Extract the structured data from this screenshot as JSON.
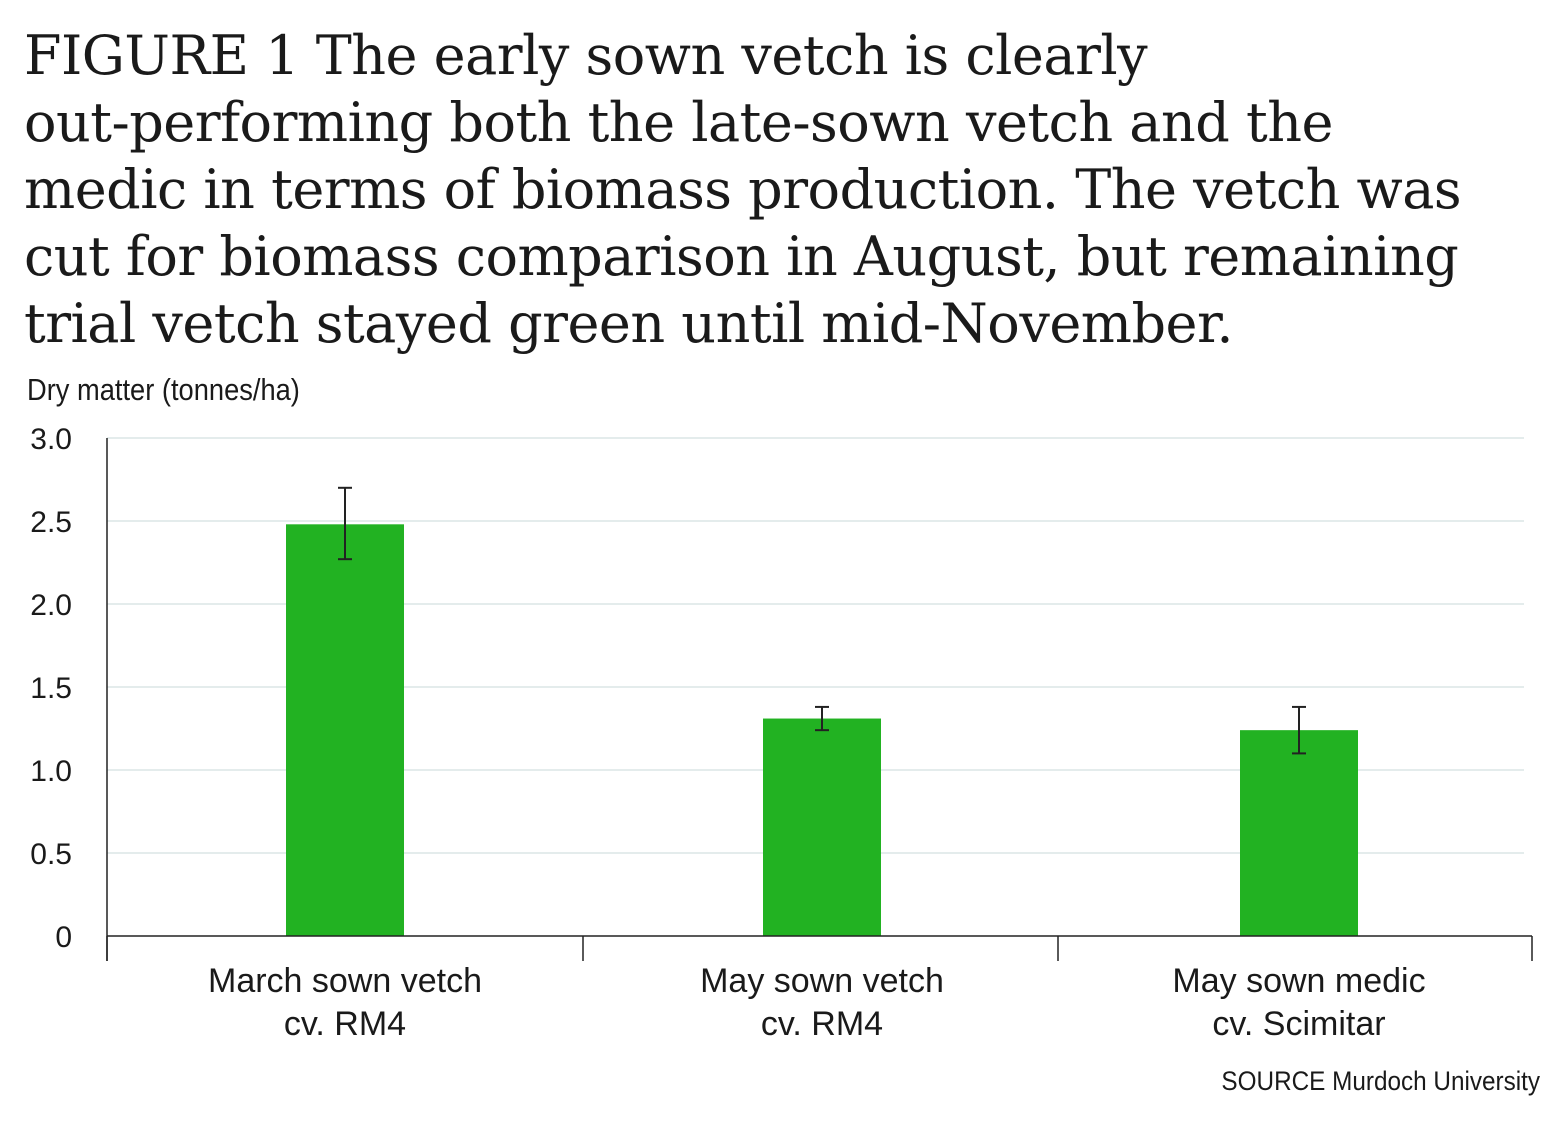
{
  "title": {
    "lines": [
      "FIGURE 1  The early sown vetch is clearly",
      "out-performing both the late-sown vetch and the",
      "medic in terms of biomass production.  The vetch was",
      "cut for biomass comparison in August, but remaining",
      "trial vetch stayed green until mid-November."
    ]
  },
  "colors": {
    "bar": "#22b222",
    "gridline": "#dbe6e6",
    "axis": "#222222",
    "error_bar": "#222222"
  },
  "chart_data": {
    "type": "bar",
    "title": "FIGURE 1  The early sown vetch is clearly out-performing both the late-sown vetch and the medic in terms of biomass production.  The vetch was cut for biomass comparison in August, but remaining trial vetch stayed green until mid-November.",
    "xlabel": "",
    "ylabel": "Dry matter (tonnes/ha)",
    "ylim": [
      0,
      3.0
    ],
    "yticks": [
      "0",
      "0.5",
      "1.0",
      "1.5",
      "2.0",
      "2.5",
      "3.0"
    ],
    "grid": true,
    "categories": [
      [
        "March sown vetch",
        "cv. RM4"
      ],
      [
        "May sown vetch",
        "cv. RM4"
      ],
      [
        "May sown medic",
        "cv. Scimitar"
      ]
    ],
    "values": [
      2.48,
      1.31,
      1.24
    ],
    "error_bars": [
      {
        "low": 2.27,
        "high": 2.7
      },
      {
        "low": 1.24,
        "high": 1.38
      },
      {
        "low": 1.1,
        "high": 1.38
      }
    ]
  },
  "source": "SOURCE Murdoch University"
}
